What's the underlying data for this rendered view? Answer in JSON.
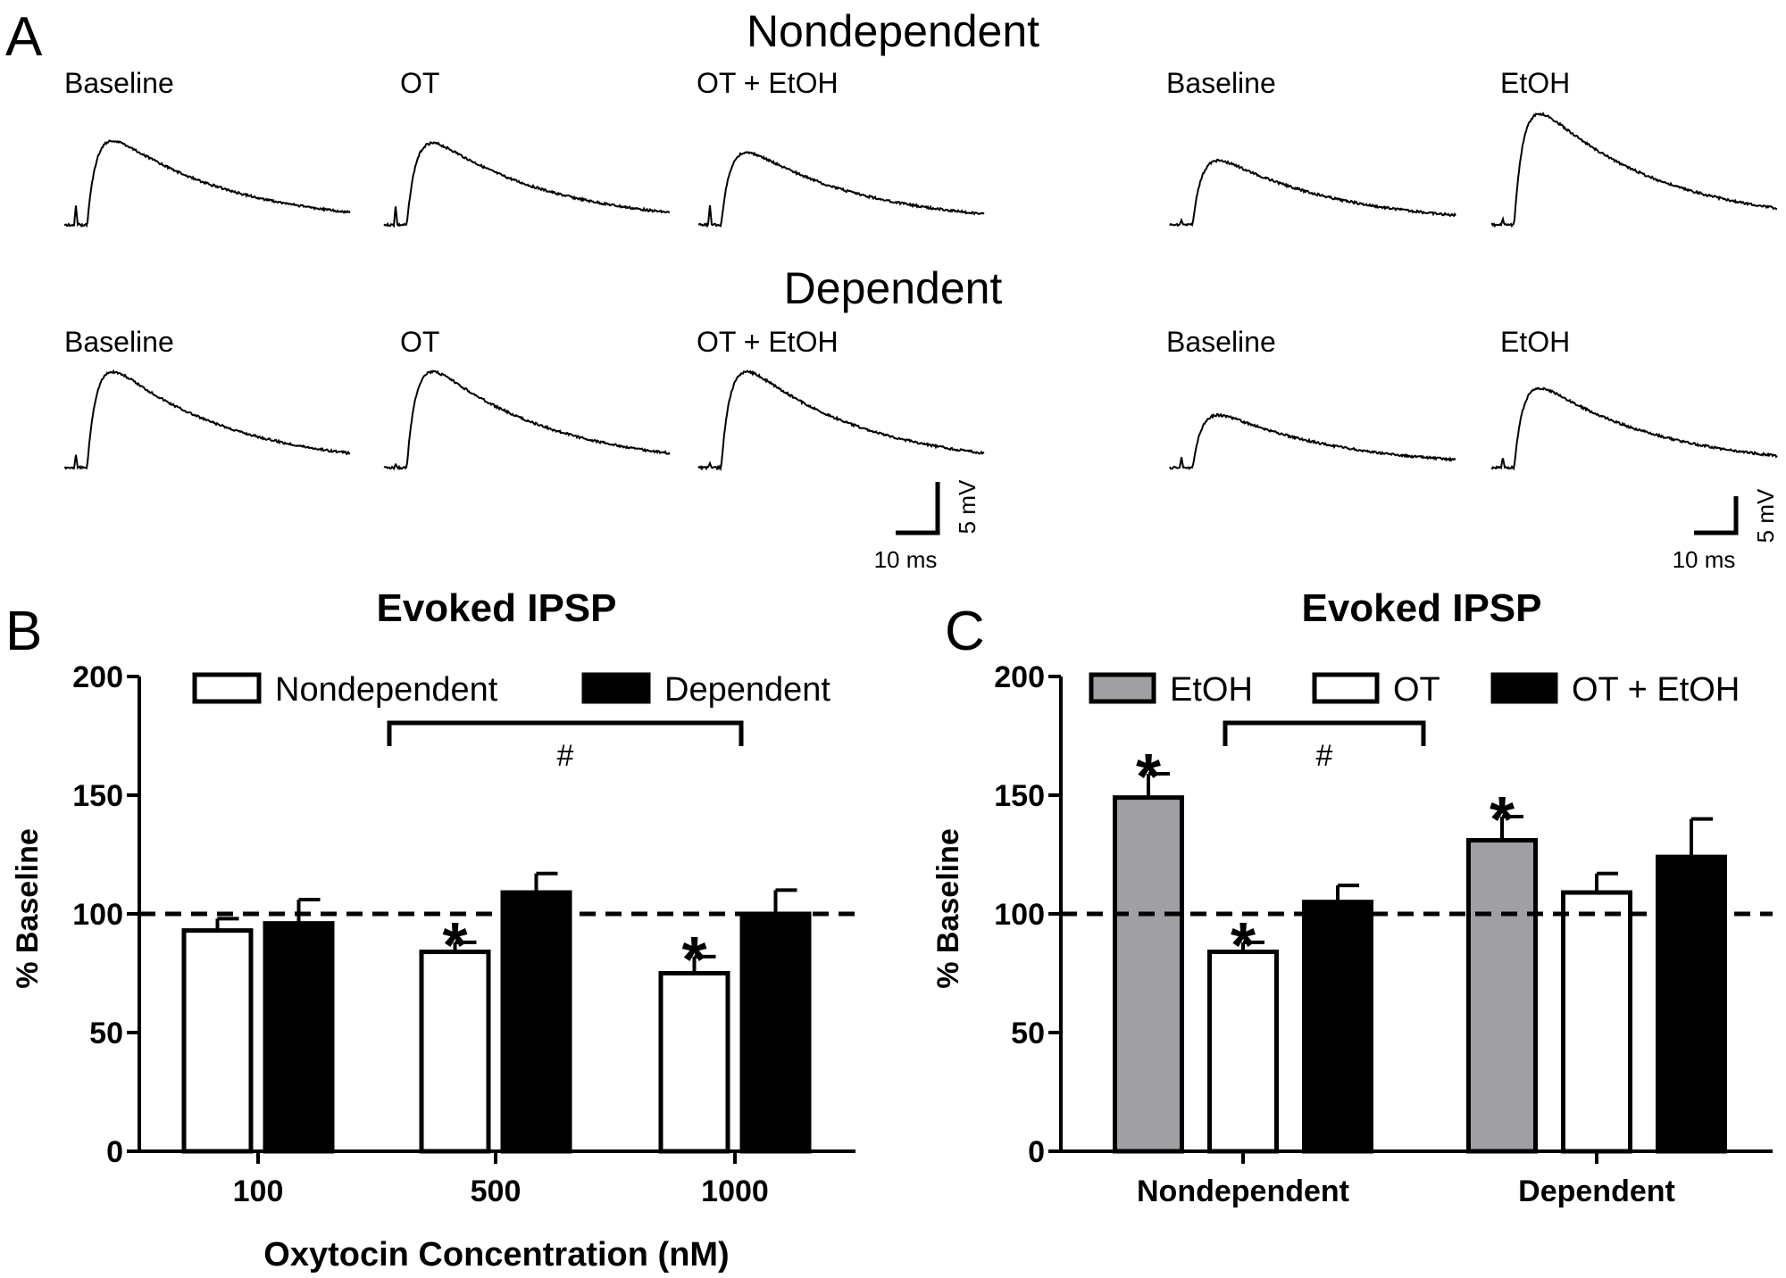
{
  "panelA": {
    "letter": "A",
    "groups": [
      {
        "title": "Nondependent",
        "labels": [
          "Baseline",
          "OT",
          "OT + EtOH",
          "Baseline",
          "EtOH"
        ],
        "traces": [
          {
            "peak": 0.72,
            "stim": 0.55
          },
          {
            "peak": 0.7,
            "stim": 0.55
          },
          {
            "peak": 0.62,
            "stim": 0.55
          },
          {
            "peak": 0.55,
            "stim": 0.15
          },
          {
            "peak": 0.95,
            "stim": 0.15
          }
        ]
      },
      {
        "title": "Dependent",
        "labels": [
          "Baseline",
          "OT",
          "OT + EtOH",
          "Baseline",
          "EtOH"
        ],
        "traces": [
          {
            "peak": 0.82,
            "stim": 0.35
          },
          {
            "peak": 0.82,
            "stim": 0.1
          },
          {
            "peak": 0.82,
            "stim": 0.1
          },
          {
            "peak": 0.45,
            "stim": 0.3
          },
          {
            "peak": 0.68,
            "stim": 0.3
          }
        ]
      }
    ],
    "scalebars": [
      {
        "time": "10 ms",
        "volt": "5 mV"
      },
      {
        "time": "10 ms",
        "volt": "5 mV"
      }
    ]
  },
  "chart_data": [
    {
      "panel": "B",
      "type": "bar",
      "title": "Evoked IPSP",
      "xlabel": "Oxytocin Concentration (nM)",
      "ylabel": "% Baseline",
      "ylim": [
        0,
        200
      ],
      "yticks": [
        "0",
        "50",
        "100",
        "150",
        "200"
      ],
      "baseline": 100,
      "categories": [
        "100",
        "500",
        "1000"
      ],
      "series": [
        {
          "name": "Nondependent",
          "color": "#ffffff",
          "values": [
            93,
            84,
            75
          ],
          "err": [
            5,
            4,
            7
          ],
          "stars": [
            false,
            true,
            true
          ]
        },
        {
          "name": "Dependent",
          "color": "#000000",
          "values": [
            96,
            109,
            100
          ],
          "err": [
            10,
            8,
            10
          ],
          "stars": [
            false,
            false,
            false
          ]
        }
      ],
      "bracket": {
        "label": "#",
        "from": "500",
        "to": "1000"
      },
      "legend": "top"
    },
    {
      "panel": "C",
      "type": "bar",
      "title": "Evoked IPSP",
      "xlabel": "",
      "ylabel": "% Baseline",
      "ylim": [
        0,
        200
      ],
      "yticks": [
        "0",
        "50",
        "100",
        "150",
        "200"
      ],
      "baseline": 100,
      "categories": [
        "Nondependent",
        "Dependent"
      ],
      "series": [
        {
          "name": "EtOH",
          "color": "#a0a0a4",
          "values": [
            149,
            131
          ],
          "err": [
            10,
            10
          ],
          "stars": [
            true,
            true
          ]
        },
        {
          "name": "OT",
          "color": "#ffffff",
          "values": [
            84,
            109
          ],
          "err": [
            4,
            8
          ],
          "stars": [
            true,
            false
          ]
        },
        {
          "name": "OT + EtOH",
          "color": "#000000",
          "values": [
            105,
            124
          ],
          "err": [
            7,
            16
          ],
          "stars": [
            false,
            false
          ]
        }
      ],
      "bracket": {
        "label": "#",
        "from": "OT",
        "to": "OT + EtOH"
      },
      "legend": "top"
    }
  ]
}
